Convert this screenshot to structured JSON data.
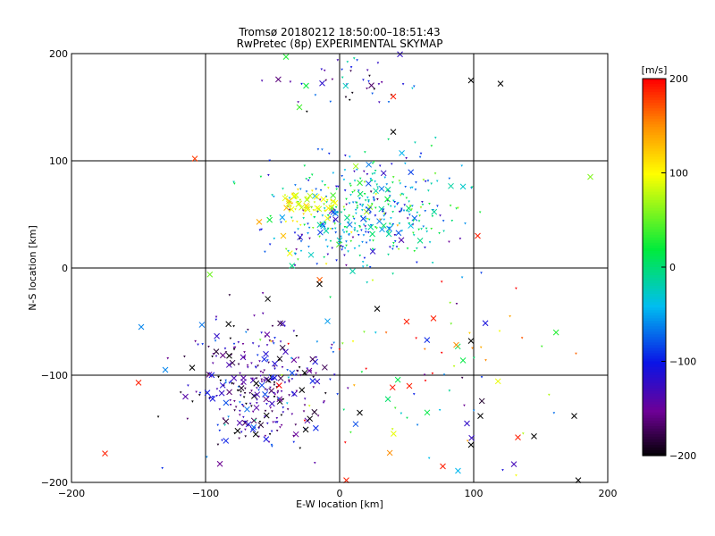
{
  "chart_data": {
    "type": "scatter",
    "title": "Tromsø 20180212 18:50:00–18:51:43",
    "subtitle": "RwPretec (8p) EXPERIMENTAL SKYMAP",
    "xlabel": "E-W location [km]",
    "ylabel": "N-S location [km]",
    "xlim": [
      -200,
      200
    ],
    "ylim": [
      -200,
      200
    ],
    "xticks": [
      -200,
      -100,
      0,
      100,
      200
    ],
    "yticks": [
      -200,
      -100,
      0,
      100,
      200
    ],
    "grid": true,
    "colorbar": {
      "label": "[m/s]",
      "min": -200,
      "max": 200,
      "ticks": [
        200,
        100,
        0,
        -100,
        -200
      ],
      "colormap": "black-purple-blue-cyan-green-yellow-red"
    },
    "markers": {
      "large": "x (cross)",
      "small": "dot / small triangle"
    },
    "clusters": [
      {
        "description": "northern blob",
        "center": [
          5,
          175
        ],
        "spread": [
          25,
          12
        ],
        "count": 45,
        "velocity_mean": -120,
        "velocity_sd": 60,
        "cross_fraction": 0.12
      },
      {
        "description": "main central cluster",
        "center": [
          20,
          50
        ],
        "spread": [
          35,
          25
        ],
        "count": 420,
        "velocity_mean": -40,
        "velocity_sd": 55,
        "cross_fraction": 0.15
      },
      {
        "description": "yellow/orange arc",
        "center": [
          -25,
          60
        ],
        "spread": [
          12,
          8
        ],
        "count": 60,
        "velocity_mean": 90,
        "velocity_sd": 20,
        "cross_fraction": 0.3
      },
      {
        "description": "south-west cluster",
        "center": [
          -60,
          -110
        ],
        "spread": [
          25,
          30
        ],
        "count": 320,
        "velocity_mean": -140,
        "velocity_sd": 45,
        "cross_fraction": 0.2
      },
      {
        "description": "scattered southeast",
        "center": [
          60,
          -100
        ],
        "spread": [
          55,
          55
        ],
        "count": 90,
        "velocity_mean": 60,
        "velocity_sd": 110,
        "cross_fraction": 0.25
      }
    ],
    "notable_points": [
      {
        "x": -175,
        "y": -173,
        "v": 190,
        "marker": "x"
      },
      {
        "x": -150,
        "y": -107,
        "v": 190,
        "marker": "x"
      },
      {
        "x": -130,
        "y": -95,
        "v": -60,
        "marker": "x"
      },
      {
        "x": -148,
        "y": -55,
        "v": -60,
        "marker": "x"
      },
      {
        "x": -108,
        "y": 102,
        "v": 180,
        "marker": "x"
      },
      {
        "x": -110,
        "y": -93,
        "v": -200,
        "marker": "x"
      },
      {
        "x": -115,
        "y": -120,
        "v": -140,
        "marker": "x"
      },
      {
        "x": 98,
        "y": 175,
        "v": -200,
        "marker": "x"
      },
      {
        "x": 120,
        "y": 172,
        "v": -200,
        "marker": "x"
      },
      {
        "x": 187,
        "y": 85,
        "v": 60,
        "marker": "x"
      },
      {
        "x": 175,
        "y": -138,
        "v": -200,
        "marker": "x"
      },
      {
        "x": 178,
        "y": -198,
        "v": -200,
        "marker": "x"
      },
      {
        "x": 145,
        "y": -157,
        "v": -200,
        "marker": "x"
      },
      {
        "x": 133,
        "y": -158,
        "v": 190,
        "marker": "x"
      },
      {
        "x": 130,
        "y": -183,
        "v": -130,
        "marker": "x"
      },
      {
        "x": 98,
        "y": -165,
        "v": -200,
        "marker": "x"
      },
      {
        "x": 95,
        "y": -145,
        "v": -120,
        "marker": "x"
      },
      {
        "x": 77,
        "y": -185,
        "v": 190,
        "marker": "x"
      },
      {
        "x": 98,
        "y": -68,
        "v": -200,
        "marker": "x"
      },
      {
        "x": 52,
        "y": -110,
        "v": 190,
        "marker": "x"
      },
      {
        "x": 70,
        "y": -47,
        "v": 190,
        "marker": "x"
      },
      {
        "x": -40,
        "y": 197,
        "v": 30,
        "marker": "x"
      },
      {
        "x": -25,
        "y": 170,
        "v": 20,
        "marker": "x"
      },
      {
        "x": 40,
        "y": 160,
        "v": 190,
        "marker": "x"
      },
      {
        "x": -30,
        "y": 150,
        "v": 40,
        "marker": "x"
      },
      {
        "x": 40,
        "y": 127,
        "v": -200,
        "marker": "x"
      },
      {
        "x": -60,
        "y": 43,
        "v": 140,
        "marker": "x"
      },
      {
        "x": -42,
        "y": 30,
        "v": 130,
        "marker": "x"
      },
      {
        "x": 103,
        "y": 30,
        "v": 190,
        "marker": "x"
      },
      {
        "x": -15,
        "y": -15,
        "v": -200,
        "marker": "x"
      },
      {
        "x": 28,
        "y": -38,
        "v": -200,
        "marker": "x"
      },
      {
        "x": 50,
        "y": -50,
        "v": 190,
        "marker": "x"
      },
      {
        "x": 15,
        "y": -135,
        "v": -200,
        "marker": "x"
      },
      {
        "x": 105,
        "y": -138,
        "v": -200,
        "marker": "x"
      },
      {
        "x": 5,
        "y": -198,
        "v": 190,
        "marker": "x"
      }
    ]
  }
}
